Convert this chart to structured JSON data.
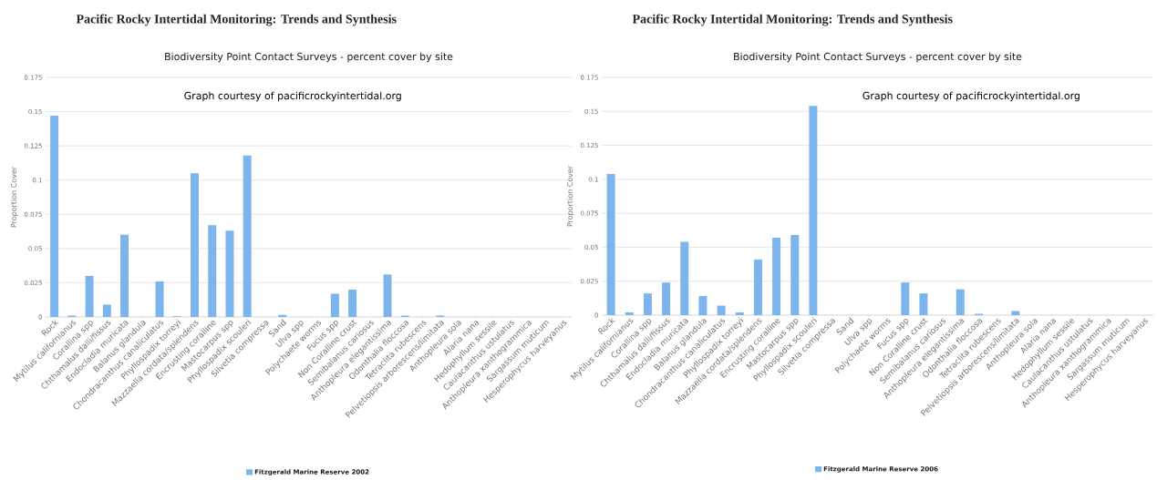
{
  "chart_data": [
    {
      "type": "bar",
      "title": "Biodiversity Point Contact Surveys - percent cover by site",
      "ylabel": "Proportion Cover",
      "annotations": [
        "Pacific Rocky Intertidal Monitoring: Trends and Synthesis",
        "Graph courtesy of pacificrockyintertidal.org"
      ],
      "categories": [
        "Rock",
        "Mytilus californianus",
        "Corallina spp",
        "Chthamalus dalli/fissus",
        "Endocladia muricata",
        "Balanus glandula",
        "Chondracanthus canaliculatus",
        "Phyllospadix torreyi",
        "Mazzaella cordata/splendens",
        "Encrusting coralline",
        "Mastocarpus spp",
        "Phyllospadix scouleri",
        "Silvetia compressa",
        "Sand",
        "Ulva spp",
        "Polychaete worms",
        "Fucus spp",
        "Non Coralline crust",
        "Semibalanus cariosus",
        "Anthopleura elegantissima",
        "Odonthalia floccosa",
        "Tetraclita rubescens",
        "Pelvetiopsis arborescens/limitata",
        "Anthopleura sola",
        "Alaria nana",
        "Hedophyllum sessile",
        "Caulacanthus ustulatus",
        "Anthopleura xanthogrammica",
        "Sargassum muticum",
        "Hesperophycus harveyanus"
      ],
      "series": [
        {
          "name": "Fitzgerald Marine Reserve 2002",
          "color": "#7cb5ec",
          "values": [
            0.147,
            0.001,
            0.03,
            0.009,
            0.06,
            0,
            0.026,
            0.0005,
            0.105,
            0.067,
            0.063,
            0.118,
            0,
            0.0015,
            0,
            0,
            0.017,
            0.02,
            0,
            0.031,
            0.001,
            0,
            0.001,
            0,
            0,
            0,
            0,
            0,
            0,
            0
          ]
        }
      ],
      "ylim": [
        0,
        0.175
      ],
      "yticks": [
        0,
        0.025,
        0.05,
        0.075,
        0.1,
        0.125,
        0.15,
        0.175
      ],
      "grid": "y",
      "legend": "bottom"
    },
    {
      "type": "bar",
      "title": "Biodiversity Point Contact Surveys - percent cover by site",
      "ylabel": "Proportion Cover",
      "annotations": [
        "Pacific Rocky Intertidal Monitoring: Trends and Synthesis",
        "Graph courtesy of pacificrockyintertidal.org"
      ],
      "categories": [
        "Rock",
        "Mytilus californianus",
        "Corallina spp",
        "Chthamalus dalli/fissus",
        "Endocladia muricata",
        "Balanus glandula",
        "Chondracanthus canaliculatus",
        "Phyllospadix torreyi",
        "Mazzaella cordata/splendens",
        "Encrusting coralline",
        "Mastocarpus spp",
        "Phyllospadix scouleri",
        "Silvetia compressa",
        "Sand",
        "Ulva spp",
        "Polychaete worms",
        "Fucus spp",
        "Non Coralline crust",
        "Semibalanus cariosus",
        "Anthopleura elegantissima",
        "Odonthalia floccosa",
        "Tetraclita rubescens",
        "Pelvetiopsis arborescens/limitata",
        "Anthopleura sola",
        "Alaria nana",
        "Hedophyllum sessile",
        "Caulacanthus ustulatus",
        "Anthopleura xanthogrammica",
        "Sargassum muticum",
        "Hesperophycus harveyanus"
      ],
      "series": [
        {
          "name": "Fitzgerald Marine Reserve 2006",
          "color": "#7cb5ec",
          "values": [
            0.104,
            0.002,
            0.016,
            0.024,
            0.054,
            0.014,
            0.007,
            0.002,
            0.041,
            0.057,
            0.059,
            0.154,
            0,
            0,
            0,
            0,
            0.024,
            0.016,
            0,
            0.019,
            0.001,
            0,
            0.003,
            0,
            0,
            0,
            0,
            0,
            0,
            0
          ]
        }
      ],
      "ylim": [
        0,
        0.175
      ],
      "yticks": [
        0,
        0.025,
        0.05,
        0.075,
        0.1,
        0.125,
        0.15,
        0.175
      ],
      "grid": "y",
      "legend": "bottom"
    }
  ]
}
